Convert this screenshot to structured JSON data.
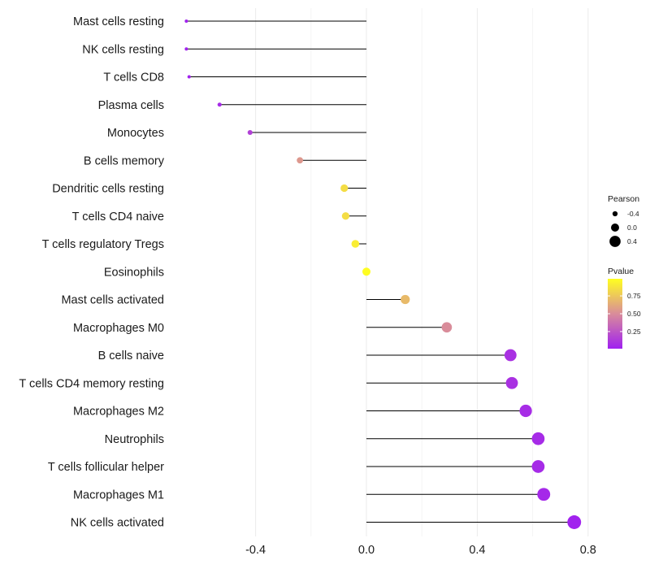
{
  "chart_data": {
    "type": "lollipop",
    "title": "",
    "xlabel": "",
    "ylabel": "",
    "xlim": [
      -0.7,
      0.82
    ],
    "x_ticks": [
      -0.4,
      0.0,
      0.4,
      0.8
    ],
    "x_tick_labels": [
      "-0.4",
      "0.0",
      "0.4",
      "0.8"
    ],
    "grid": true,
    "categories": [
      "Mast cells resting",
      "NK cells resting",
      "T cells CD8",
      "Plasma cells",
      "Monocytes",
      "B cells memory",
      "Dendritic cells resting",
      "T cells CD4 naive",
      "T cells regulatory  Tregs",
      "Eosinophils",
      "Mast cells activated",
      "Macrophages M0",
      "B cells naive",
      "T cells CD4 memory resting",
      "Macrophages M2",
      "Neutrophils",
      "T cells follicular helper",
      "Macrophages M1",
      "NK cells activated"
    ],
    "values": [
      -0.65,
      -0.65,
      -0.64,
      -0.53,
      -0.42,
      -0.24,
      -0.08,
      -0.075,
      -0.04,
      0.0,
      0.14,
      0.29,
      0.52,
      0.525,
      0.575,
      0.62,
      0.62,
      0.64,
      0.75
    ],
    "pvalues": [
      0.01,
      0.01,
      0.01,
      0.05,
      0.15,
      0.55,
      0.85,
      0.85,
      0.92,
      0.99,
      0.7,
      0.5,
      0.08,
      0.08,
      0.06,
      0.05,
      0.05,
      0.04,
      0.01
    ],
    "legend": {
      "position": "right",
      "size_title": "Pearson",
      "size_labels": [
        "-0.4",
        "0.0",
        "0.4"
      ],
      "size_values": [
        -0.4,
        0.0,
        0.4
      ],
      "color_title": "Pvalue",
      "color_labels": [
        "0.75",
        "0.50",
        "0.25"
      ],
      "color_values": [
        0.75,
        0.5,
        0.25
      ],
      "color_low": "#a020f0",
      "color_mid": "#d98c9a",
      "color_high": "#ffff20"
    }
  }
}
